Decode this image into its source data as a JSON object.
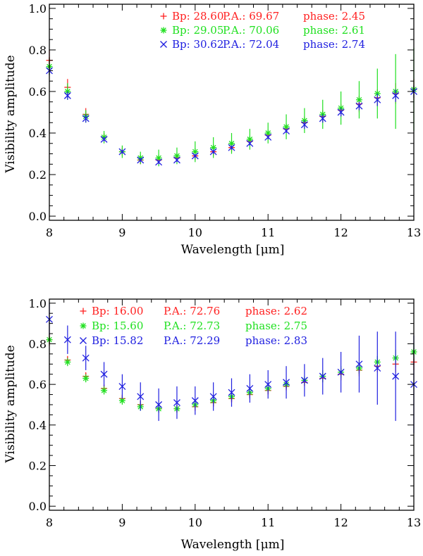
{
  "chart_data": [
    {
      "type": "scatter",
      "xlabel": "Wavelength [μm]",
      "ylabel": "Visibility amplitude",
      "xlim": [
        8,
        13
      ],
      "ylim": [
        -0.02,
        1.02
      ],
      "x_ticks": [
        "8",
        "9",
        "10",
        "11",
        "12",
        "13"
      ],
      "y_ticks": [
        "0.0",
        "0.2",
        "0.4",
        "0.6",
        "0.8",
        "1.0"
      ],
      "legend_placement": "top-right",
      "series": [
        {
          "name": "Bp: 28.60   P.A.: 69.67   phase: 2.45",
          "legend": {
            "bp": "Bp: 28.60",
            "pa": "P.A.: 69.67",
            "phase": "phase: 2.45"
          },
          "color": "#ff2020",
          "marker": "plus",
          "x": [
            8.0,
            8.25,
            8.5,
            8.75,
            9.0,
            9.25,
            9.5,
            9.75,
            10.0,
            10.25,
            10.5,
            10.75,
            11.0,
            11.25,
            11.5,
            11.75,
            12.0,
            12.25,
            12.5,
            12.75,
            13.0
          ],
          "y": [
            0.75,
            0.62,
            0.49,
            0.38,
            0.31,
            0.27,
            0.27,
            0.28,
            0.29,
            0.31,
            0.33,
            0.36,
            0.39,
            0.42,
            0.45,
            0.48,
            0.51,
            0.54,
            0.57,
            0.59,
            0.61
          ],
          "err": [
            0.05,
            0.04,
            0.03,
            0.02,
            0.02,
            0.02,
            0.02,
            0.02,
            0.02,
            0.02,
            0.02,
            0.02,
            0.02,
            0.02,
            0.03,
            0.03,
            0.03,
            0.04,
            0.04,
            0.05,
            0.05
          ]
        },
        {
          "name": "Bp: 29.05   P.A.: 70.06   phase: 2.61",
          "legend": {
            "bp": "Bp: 29.05",
            "pa": "P.A.: 70.06",
            "phase": "phase: 2.61"
          },
          "color": "#20e020",
          "marker": "asterisk",
          "x": [
            8.0,
            8.25,
            8.5,
            8.75,
            9.0,
            9.25,
            9.5,
            9.75,
            10.0,
            10.25,
            10.5,
            10.75,
            11.0,
            11.25,
            11.5,
            11.75,
            12.0,
            12.25,
            12.5,
            12.75,
            13.0
          ],
          "y": [
            0.72,
            0.6,
            0.48,
            0.38,
            0.31,
            0.28,
            0.28,
            0.29,
            0.31,
            0.33,
            0.35,
            0.37,
            0.4,
            0.43,
            0.46,
            0.49,
            0.52,
            0.56,
            0.59,
            0.6,
            0.61
          ],
          "err": [
            0.04,
            0.04,
            0.03,
            0.03,
            0.03,
            0.03,
            0.04,
            0.04,
            0.05,
            0.05,
            0.05,
            0.05,
            0.05,
            0.06,
            0.06,
            0.07,
            0.08,
            0.09,
            0.12,
            0.18,
            0.2
          ]
        },
        {
          "name": "Bp: 30.62   P.A.: 72.04   phase: 2.74",
          "legend": {
            "bp": "Bp: 30.62",
            "pa": "P.A.: 72.04",
            "phase": "phase: 2.74"
          },
          "color": "#2020e0",
          "marker": "cross",
          "x": [
            8.0,
            8.25,
            8.5,
            8.75,
            9.0,
            9.25,
            9.5,
            9.75,
            10.0,
            10.25,
            10.5,
            10.75,
            11.0,
            11.25,
            11.5,
            11.75,
            12.0,
            12.25,
            12.5,
            12.75,
            13.0
          ],
          "y": [
            0.7,
            0.58,
            0.47,
            0.37,
            0.31,
            0.27,
            0.26,
            0.27,
            0.29,
            0.31,
            0.33,
            0.35,
            0.38,
            0.41,
            0.44,
            0.47,
            0.5,
            0.53,
            0.56,
            0.58,
            0.6
          ],
          "err": [
            0.02,
            0.02,
            0.02,
            0.01,
            0.01,
            0.01,
            0.01,
            0.01,
            0.01,
            0.01,
            0.01,
            0.01,
            0.01,
            0.01,
            0.02,
            0.02,
            0.02,
            0.02,
            0.03,
            0.03,
            0.03
          ]
        }
      ]
    },
    {
      "type": "scatter",
      "xlabel": "Wavelength [μm]",
      "ylabel": "Visibility amplitude",
      "xlim": [
        8,
        13
      ],
      "ylim": [
        -0.02,
        1.02
      ],
      "x_ticks": [
        "8",
        "9",
        "10",
        "11",
        "12",
        "13"
      ],
      "y_ticks": [
        "0.0",
        "0.2",
        "0.4",
        "0.6",
        "0.8",
        "1.0"
      ],
      "legend_placement": "top-right",
      "series": [
        {
          "name": "Bp: 16.00   P.A.: 72.76   phase: 2.62",
          "legend": {
            "bp": "Bp: 16.00",
            "pa": "P.A.: 72.76",
            "phase": "phase: 2.62"
          },
          "color": "#ff2020",
          "marker": "plus",
          "x": [
            8.0,
            8.25,
            8.5,
            8.75,
            9.0,
            9.25,
            9.5,
            9.75,
            10.0,
            10.25,
            10.5,
            10.75,
            11.0,
            11.25,
            11.5,
            11.75,
            12.0,
            12.25,
            12.5,
            12.75,
            13.0
          ],
          "y": [
            0.82,
            0.72,
            0.64,
            0.58,
            0.53,
            0.5,
            0.48,
            0.48,
            0.49,
            0.51,
            0.53,
            0.55,
            0.57,
            0.59,
            0.61,
            0.63,
            0.65,
            0.67,
            0.69,
            0.7,
            0.71
          ],
          "err": [
            0.03,
            0.02,
            0.02,
            0.02,
            0.02,
            0.02,
            0.02,
            0.02,
            0.02,
            0.02,
            0.02,
            0.02,
            0.02,
            0.02,
            0.02,
            0.02,
            0.03,
            0.03,
            0.03,
            0.04,
            0.04
          ]
        },
        {
          "name": "Bp: 15.60   P.A.: 72.73   phase: 2.75",
          "legend": {
            "bp": "Bp: 15.60",
            "pa": "P.A.: 72.73",
            "phase": "phase: 2.75"
          },
          "color": "#20e020",
          "marker": "asterisk",
          "x": [
            8.0,
            8.25,
            8.5,
            8.75,
            9.0,
            9.25,
            9.5,
            9.75,
            10.0,
            10.25,
            10.5,
            10.75,
            11.0,
            11.25,
            11.5,
            11.75,
            12.0,
            12.25,
            12.5,
            12.75,
            13.0
          ],
          "y": [
            0.82,
            0.71,
            0.63,
            0.57,
            0.52,
            0.49,
            0.48,
            0.48,
            0.5,
            0.52,
            0.54,
            0.56,
            0.58,
            0.6,
            0.62,
            0.64,
            0.66,
            0.68,
            0.71,
            0.73,
            0.76
          ],
          "err": [
            0.02,
            0.02,
            0.02,
            0.02,
            0.02,
            0.02,
            0.02,
            0.02,
            0.02,
            0.02,
            0.02,
            0.02,
            0.02,
            0.02,
            0.02,
            0.03,
            0.03,
            0.03,
            0.03,
            0.04,
            0.04
          ]
        },
        {
          "name": "Bp: 15.82   P.A.: 72.29   phase: 2.83",
          "legend": {
            "bp": "Bp: 15.82",
            "pa": "P.A.: 72.29",
            "phase": "phase: 2.83"
          },
          "color": "#2020e0",
          "marker": "cross",
          "x": [
            8.0,
            8.25,
            8.5,
            8.75,
            9.0,
            9.25,
            9.5,
            9.75,
            10.0,
            10.25,
            10.5,
            10.75,
            11.0,
            11.25,
            11.5,
            11.75,
            12.0,
            12.25,
            12.5,
            12.75,
            13.0
          ],
          "y": [
            0.92,
            0.82,
            0.73,
            0.65,
            0.59,
            0.54,
            0.5,
            0.51,
            0.52,
            0.54,
            0.56,
            0.58,
            0.6,
            0.61,
            0.62,
            0.64,
            0.66,
            0.7,
            0.68,
            0.64,
            0.6
          ],
          "err": [
            0.08,
            0.07,
            0.06,
            0.06,
            0.06,
            0.07,
            0.08,
            0.08,
            0.07,
            0.07,
            0.07,
            0.07,
            0.07,
            0.08,
            0.08,
            0.09,
            0.1,
            0.14,
            0.18,
            0.22,
            0.24
          ]
        }
      ]
    }
  ]
}
